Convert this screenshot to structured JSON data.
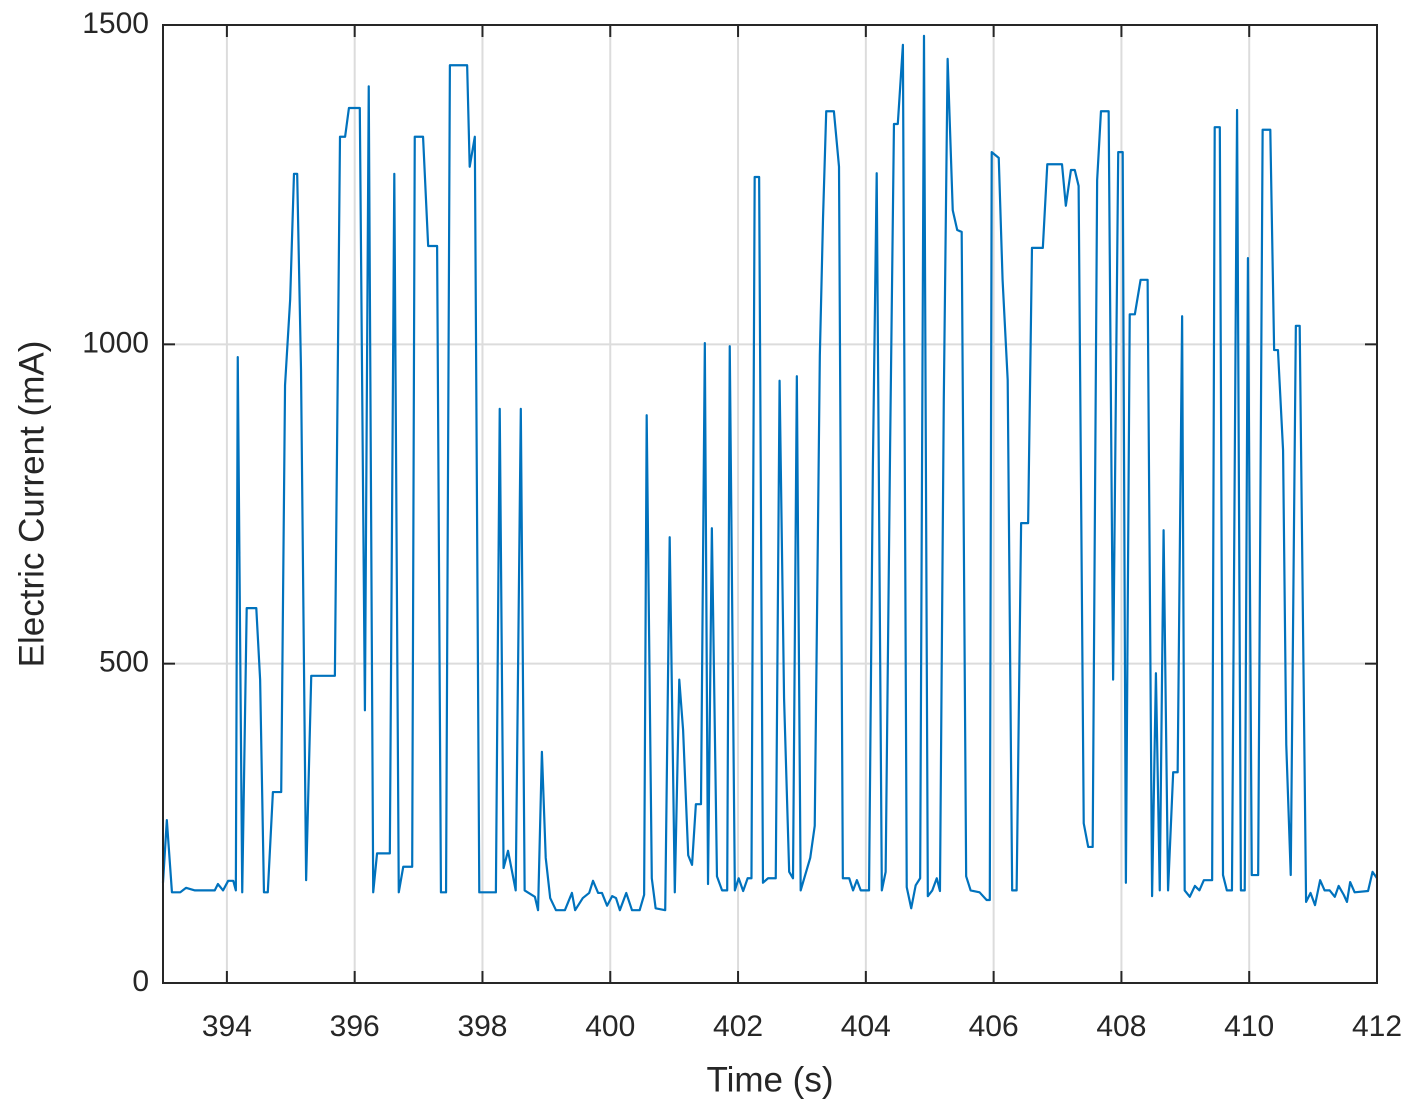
{
  "chart_data": {
    "type": "line",
    "xlabel": "Time (s)",
    "ylabel": "Electric Current (mA)",
    "xlim": [
      393,
      412
    ],
    "ylim": [
      0,
      1500
    ],
    "xticks": [
      394,
      396,
      398,
      400,
      402,
      404,
      406,
      408,
      410,
      412
    ],
    "yticks": [
      0,
      500,
      1000,
      1500
    ],
    "grid": true,
    "x": [
      393.0,
      393.06,
      393.14,
      393.27,
      393.36,
      393.5,
      393.81,
      393.86,
      393.94,
      394.02,
      394.1,
      394.14,
      394.17,
      394.24,
      394.31,
      394.46,
      394.52,
      394.58,
      394.64,
      394.72,
      394.85,
      394.91,
      394.99,
      395.05,
      395.1,
      395.16,
      395.24,
      395.32,
      395.69,
      395.77,
      395.85,
      395.91,
      396.08,
      396.16,
      396.22,
      396.29,
      396.35,
      396.55,
      396.62,
      396.69,
      396.76,
      396.9,
      396.94,
      397.07,
      397.15,
      397.29,
      397.35,
      397.43,
      397.49,
      397.76,
      397.8,
      397.88,
      397.95,
      398.21,
      398.27,
      398.33,
      398.4,
      398.52,
      398.6,
      398.66,
      398.82,
      398.87,
      398.93,
      398.99,
      399.06,
      399.15,
      399.29,
      399.4,
      399.45,
      399.57,
      399.67,
      399.73,
      399.81,
      399.87,
      399.95,
      400.03,
      400.09,
      400.15,
      400.25,
      400.34,
      400.46,
      400.53,
      400.57,
      400.65,
      400.71,
      400.86,
      400.93,
      401.01,
      401.08,
      401.14,
      401.22,
      401.28,
      401.34,
      401.42,
      401.48,
      401.53,
      401.59,
      401.67,
      401.75,
      401.83,
      401.87,
      401.95,
      402.01,
      402.08,
      402.15,
      402.21,
      402.26,
      402.33,
      402.39,
      402.47,
      402.59,
      402.65,
      402.72,
      402.8,
      402.86,
      402.92,
      402.98,
      403.13,
      403.2,
      403.28,
      403.33,
      403.38,
      403.5,
      403.58,
      403.64,
      403.74,
      403.8,
      403.86,
      403.92,
      404.05,
      404.11,
      404.17,
      404.25,
      404.31,
      404.38,
      404.44,
      404.5,
      404.58,
      404.64,
      404.71,
      404.78,
      404.85,
      404.91,
      404.97,
      405.04,
      405.11,
      405.16,
      405.22,
      405.28,
      405.36,
      405.43,
      405.5,
      405.57,
      405.64,
      405.78,
      405.89,
      405.94,
      405.97,
      406.08,
      406.14,
      406.22,
      406.29,
      406.36,
      406.43,
      406.54,
      406.6,
      406.77,
      406.84,
      407.07,
      407.13,
      407.21,
      407.27,
      407.33,
      407.41,
      407.48,
      407.55,
      407.62,
      407.68,
      407.8,
      407.87,
      407.95,
      408.02,
      408.07,
      408.13,
      408.21,
      408.3,
      408.41,
      408.48,
      408.54,
      408.6,
      408.66,
      408.73,
      408.81,
      408.88,
      408.95,
      408.99,
      409.07,
      409.15,
      409.22,
      409.29,
      409.42,
      409.46,
      409.54,
      409.59,
      409.65,
      409.73,
      409.81,
      409.87,
      409.93,
      409.98,
      410.04,
      410.14,
      410.21,
      410.33,
      410.39,
      410.45,
      410.53,
      410.58,
      410.65,
      410.73,
      410.79,
      410.89,
      410.96,
      411.03,
      411.11,
      411.18,
      411.26,
      411.34,
      411.4,
      411.48,
      411.53,
      411.58,
      411.65,
      411.86,
      411.93,
      412.0
    ],
    "series": [
      {
        "name": "Electric Current",
        "color": "#0072bd",
        "values": [
          157,
          255,
          142,
          142,
          149,
          145,
          145,
          155,
          145,
          160,
          160,
          145,
          980,
          142,
          587,
          587,
          475,
          142,
          142,
          299,
          299,
          936,
          1070,
          1267,
          1267,
          960,
          161,
          481,
          481,
          1325,
          1325,
          1370,
          1370,
          427,
          1404,
          142,
          203,
          203,
          1267,
          142,
          182,
          182,
          1325,
          1325,
          1154,
          1154,
          142,
          142,
          1437,
          1437,
          1278,
          1325,
          142,
          142,
          899,
          180,
          207,
          145,
          899,
          145,
          135,
          114,
          362,
          196,
          133,
          114,
          114,
          141,
          114,
          133,
          141,
          160,
          141,
          141,
          121,
          136,
          133,
          114,
          141,
          114,
          114,
          138,
          889,
          164,
          117,
          114,
          698,
          142,
          475,
          396,
          200,
          185,
          280,
          280,
          1002,
          155,
          712,
          167,
          145,
          145,
          997,
          145,
          164,
          144,
          164,
          164,
          1262,
          1262,
          157,
          164,
          164,
          943,
          446,
          174,
          164,
          950,
          145,
          196,
          246,
          983,
          1198,
          1365,
          1365,
          1278,
          164,
          164,
          145,
          161,
          145,
          145,
          808,
          1268,
          145,
          174,
          842,
          1345,
          1345,
          1469,
          150,
          117,
          153,
          164,
          1483,
          136,
          145,
          164,
          144,
          913,
          1447,
          1210,
          1179,
          1176,
          167,
          145,
          142,
          130,
          130,
          1301,
          1292,
          1101,
          944,
          145,
          145,
          720,
          720,
          1151,
          1151,
          1282,
          1282,
          1217,
          1273,
          1273,
          1248,
          250,
          213,
          213,
          1257,
          1365,
          1365,
          475,
          1301,
          1301,
          157,
          1047,
          1047,
          1101,
          1101,
          136,
          485,
          145,
          709,
          145,
          330,
          330,
          1044,
          145,
          135,
          152,
          145,
          161,
          161,
          1340,
          1340,
          169,
          145,
          145,
          1367,
          145,
          145,
          1135,
          169,
          169,
          1336,
          1336,
          991,
          991,
          834,
          373,
          169,
          1029,
          1029,
          127,
          141,
          122,
          161,
          145,
          145,
          135,
          152,
          138,
          127,
          158,
          142,
          144,
          174,
          164
        ]
      }
    ]
  }
}
